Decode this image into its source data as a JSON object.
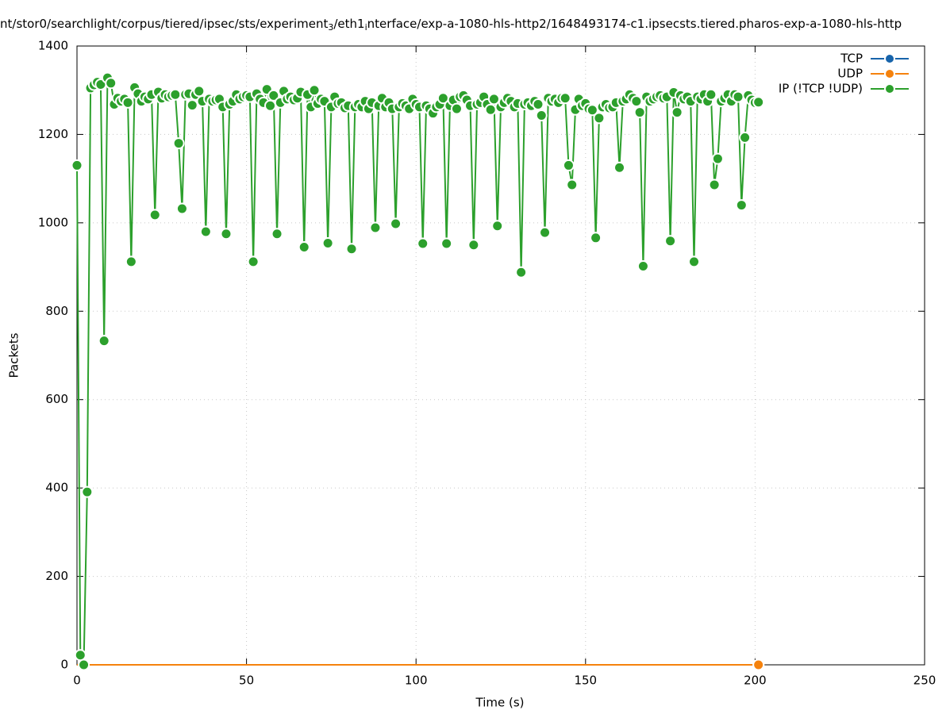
{
  "chart_data": {
    "type": "line",
    "title_parts": [
      "nt/stor0/searchlight/corpus/tiered/ipsec/sts/experiment",
      "3",
      "/eth1",
      "i",
      "nterface/exp-a-1080-hls-http2/1648493174-c1.ipsecsts.tiered.pharos-exp-a-1080-hls-http"
    ],
    "xlabel": "Time (s)",
    "ylabel": "Packets",
    "xlim": [
      0,
      250
    ],
    "ylim": [
      0,
      1400
    ],
    "xticks": [
      0,
      50,
      100,
      150,
      200,
      250
    ],
    "yticks": [
      0,
      200,
      400,
      600,
      800,
      1000,
      1200,
      1400
    ],
    "grid": true,
    "legend": "top-right",
    "x": [
      0,
      1,
      2,
      3,
      4,
      5,
      6,
      7,
      8,
      9,
      10,
      11,
      12,
      13,
      14,
      15,
      16,
      17,
      18,
      19,
      20,
      21,
      22,
      23,
      24,
      25,
      26,
      27,
      28,
      29,
      30,
      31,
      32,
      33,
      34,
      35,
      36,
      37,
      38,
      39,
      40,
      41,
      42,
      43,
      44,
      45,
      46,
      47,
      48,
      49,
      50,
      51,
      52,
      53,
      54,
      55,
      56,
      57,
      58,
      59,
      60,
      61,
      62,
      63,
      64,
      65,
      66,
      67,
      68,
      69,
      70,
      71,
      72,
      73,
      74,
      75,
      76,
      77,
      78,
      79,
      80,
      81,
      82,
      83,
      84,
      85,
      86,
      87,
      88,
      89,
      90,
      91,
      92,
      93,
      94,
      95,
      96,
      97,
      98,
      99,
      100,
      101,
      102,
      103,
      104,
      105,
      106,
      107,
      108,
      109,
      110,
      111,
      112,
      113,
      114,
      115,
      116,
      117,
      118,
      119,
      120,
      121,
      122,
      123,
      124,
      125,
      126,
      127,
      128,
      129,
      130,
      131,
      132,
      133,
      134,
      135,
      136,
      137,
      138,
      139,
      140,
      141,
      142,
      143,
      144,
      145,
      146,
      147,
      148,
      149,
      150,
      151,
      152,
      153,
      154,
      155,
      156,
      157,
      158,
      159,
      160,
      161,
      162,
      163,
      164,
      165,
      166,
      167,
      168,
      169,
      170,
      171,
      172,
      173,
      174,
      175,
      176,
      177,
      178,
      179,
      180,
      181,
      182,
      183,
      184,
      185,
      186,
      187,
      188,
      189,
      190,
      191,
      192,
      193,
      194,
      195,
      196,
      197,
      198,
      199,
      200,
      201
    ],
    "series": [
      {
        "name": "TCP",
        "color": "#1764ab",
        "markers": "last",
        "values": [
          0,
          0,
          0,
          0,
          0,
          0,
          0,
          0,
          0,
          0,
          0,
          0,
          0,
          0,
          0,
          0,
          0,
          0,
          0,
          0,
          0,
          0,
          0,
          0,
          0,
          0,
          0,
          0,
          0,
          0,
          0,
          0,
          0,
          0,
          0,
          0,
          0,
          0,
          0,
          0,
          0,
          0,
          0,
          0,
          0,
          0,
          0,
          0,
          0,
          0,
          0,
          0,
          0,
          0,
          0,
          0,
          0,
          0,
          0,
          0,
          0,
          0,
          0,
          0,
          0,
          0,
          0,
          0,
          0,
          0,
          0,
          0,
          0,
          0,
          0,
          0,
          0,
          0,
          0,
          0,
          0,
          0,
          0,
          0,
          0,
          0,
          0,
          0,
          0,
          0,
          0,
          0,
          0,
          0,
          0,
          0,
          0,
          0,
          0,
          0,
          0,
          0,
          0,
          0,
          0,
          0,
          0,
          0,
          0,
          0,
          0,
          0,
          0,
          0,
          0,
          0,
          0,
          0,
          0,
          0,
          0,
          0,
          0,
          0,
          0,
          0,
          0,
          0,
          0,
          0,
          0,
          0,
          0,
          0,
          0,
          0,
          0,
          0,
          0,
          0,
          0,
          0,
          0,
          0,
          0,
          0,
          0,
          0,
          0,
          0,
          0,
          0,
          0,
          0,
          0,
          0,
          0,
          0,
          0,
          0,
          0,
          0,
          0,
          0,
          0,
          0,
          0,
          0,
          0,
          0,
          0,
          0,
          0,
          0,
          0,
          0,
          0,
          0,
          0,
          0,
          0,
          0,
          0,
          0,
          0,
          0,
          0,
          0,
          0,
          0,
          0,
          0,
          0,
          0,
          0,
          0,
          0,
          0,
          0,
          0,
          0,
          0
        ]
      },
      {
        "name": "UDP",
        "color": "#f5820d",
        "markers": "last",
        "values": [
          0,
          0,
          0,
          0,
          0,
          0,
          0,
          0,
          0,
          0,
          0,
          0,
          0,
          0,
          0,
          0,
          0,
          0,
          0,
          0,
          0,
          0,
          0,
          0,
          0,
          0,
          0,
          0,
          0,
          0,
          0,
          0,
          0,
          0,
          0,
          0,
          0,
          0,
          0,
          0,
          0,
          0,
          0,
          0,
          0,
          0,
          0,
          0,
          0,
          0,
          0,
          0,
          0,
          0,
          0,
          0,
          0,
          0,
          0,
          0,
          0,
          0,
          0,
          0,
          0,
          0,
          0,
          0,
          0,
          0,
          0,
          0,
          0,
          0,
          0,
          0,
          0,
          0,
          0,
          0,
          0,
          0,
          0,
          0,
          0,
          0,
          0,
          0,
          0,
          0,
          0,
          0,
          0,
          0,
          0,
          0,
          0,
          0,
          0,
          0,
          0,
          0,
          0,
          0,
          0,
          0,
          0,
          0,
          0,
          0,
          0,
          0,
          0,
          0,
          0,
          0,
          0,
          0,
          0,
          0,
          0,
          0,
          0,
          0,
          0,
          0,
          0,
          0,
          0,
          0,
          0,
          0,
          0,
          0,
          0,
          0,
          0,
          0,
          0,
          0,
          0,
          0,
          0,
          0,
          0,
          0,
          0,
          0,
          0,
          0,
          0,
          0,
          0,
          0,
          0,
          0,
          0,
          0,
          0,
          0,
          0,
          0,
          0,
          0,
          0,
          0,
          0,
          0,
          0,
          0,
          0,
          0,
          0,
          0,
          0,
          0,
          0,
          0,
          0,
          0,
          0,
          0,
          0,
          0,
          0,
          0,
          0,
          0,
          0,
          0,
          0,
          0,
          0,
          0,
          0,
          0,
          0,
          0,
          0,
          0,
          0,
          0
        ]
      },
      {
        "name": "IP (!TCP  !UDP)",
        "color": "#2ca02c",
        "markers": "all",
        "values": [
          1130,
          22,
          0,
          391,
          1305,
          1312,
          1318,
          1313,
          733,
          1328,
          1316,
          1268,
          1282,
          1275,
          1280,
          1272,
          912,
          1306,
          1292,
          1275,
          1285,
          1280,
          1290,
          1018,
          1296,
          1282,
          1290,
          1285,
          1288,
          1290,
          1180,
          1032,
          1290,
          1292,
          1266,
          1290,
          1298,
          1275,
          980,
          1280,
          1275,
          1278,
          1280,
          1262,
          975,
          1268,
          1275,
          1290,
          1280,
          1285,
          1288,
          1285,
          912,
          1292,
          1280,
          1272,
          1302,
          1265,
          1288,
          975,
          1272,
          1298,
          1280,
          1285,
          1278,
          1282,
          1296,
          945,
          1290,
          1262,
          1300,
          1270,
          1280,
          1275,
          954,
          1262,
          1285,
          1270,
          1272,
          1260,
          1265,
          941,
          1262,
          1268,
          1262,
          1275,
          1258,
          1272,
          989,
          1265,
          1282,
          1262,
          1272,
          1258,
          998,
          1262,
          1270,
          1265,
          1258,
          1280,
          1268,
          1262,
          953,
          1265,
          1258,
          1248,
          1262,
          1268,
          1282,
          953,
          1265,
          1278,
          1258,
          1285,
          1288,
          1278,
          1265,
          950,
          1268,
          1272,
          1285,
          1268,
          1256,
          1280,
          993,
          1262,
          1272,
          1282,
          1275,
          1262,
          1270,
          888,
          1268,
          1272,
          1265,
          1275,
          1268,
          1243,
          978,
          1282,
          1275,
          1280,
          1272,
          1282,
          1282,
          1130,
          1086,
          1256,
          1280,
          1265,
          1270,
          1258,
          1255,
          966,
          1237,
          1262,
          1268,
          1260,
          1262,
          1272,
          1125,
          1275,
          1280,
          1290,
          1282,
          1275,
          1250,
          902,
          1285,
          1275,
          1280,
          1285,
          1288,
          1282,
          1285,
          959,
          1295,
          1250,
          1288,
          1280,
          1285,
          1275,
          912,
          1285,
          1280,
          1290,
          1275,
          1290,
          1086,
          1145,
          1275,
          1282,
          1290,
          1275,
          1290,
          1285,
          1040,
          1193,
          1288,
          1278,
          1272,
          1273
        ]
      }
    ]
  }
}
